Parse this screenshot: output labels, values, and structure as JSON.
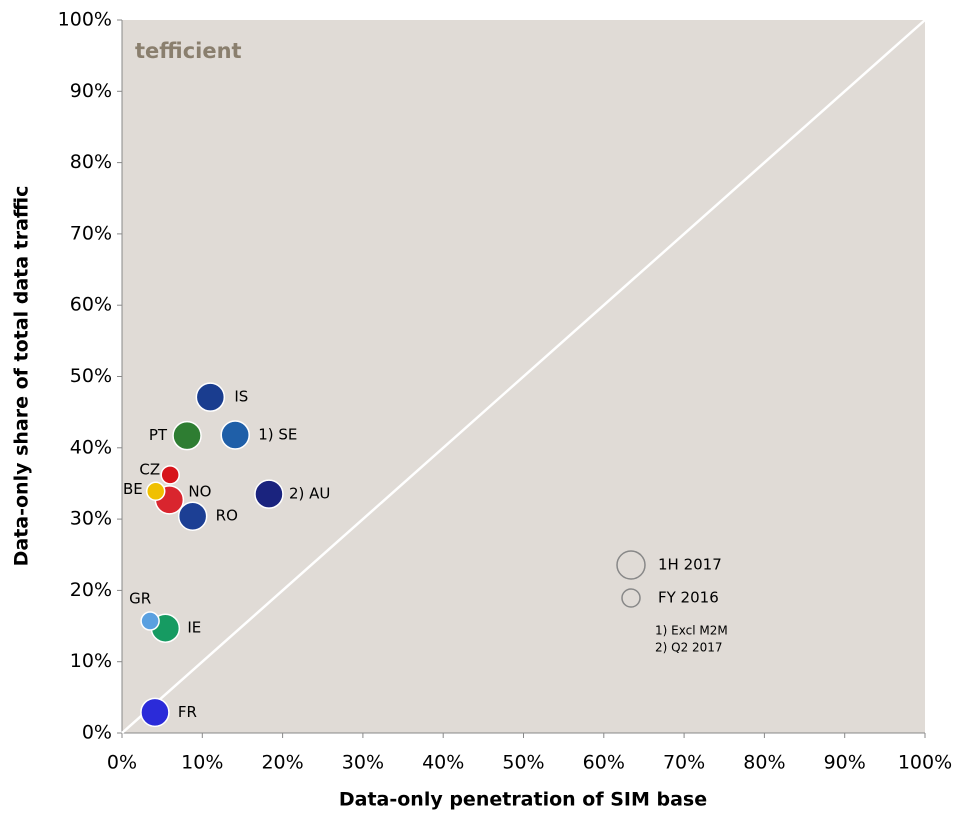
{
  "chart_data": {
    "type": "scatter",
    "x_label": "Data-only penetration of SIM base",
    "y_label": "Data-only share of total data traffic",
    "logo": "tefficient",
    "notes": [
      "1) Excl M2M",
      "2) Q2 2017"
    ],
    "diagonal": true,
    "xlim": [
      0,
      100
    ],
    "ylim": [
      0,
      100
    ],
    "xticks": [
      {
        "value": 0,
        "label": "0%"
      },
      {
        "value": 10,
        "label": "10%"
      },
      {
        "value": 20,
        "label": "20%"
      },
      {
        "value": 30,
        "label": "30%"
      },
      {
        "value": 40,
        "label": "40%"
      },
      {
        "value": 50,
        "label": "50%"
      },
      {
        "value": 60,
        "label": "60%"
      },
      {
        "value": 70,
        "label": "70%"
      },
      {
        "value": 80,
        "label": "80%"
      },
      {
        "value": 90,
        "label": "90%"
      },
      {
        "value": 100,
        "label": "100%"
      }
    ],
    "yticks": [
      {
        "value": 0,
        "label": "0%"
      },
      {
        "value": 10,
        "label": "10%"
      },
      {
        "value": 20,
        "label": "20%"
      },
      {
        "value": 30,
        "label": "30%"
      },
      {
        "value": 40,
        "label": "40%"
      },
      {
        "value": 50,
        "label": "50%"
      },
      {
        "value": 60,
        "label": "60%"
      },
      {
        "value": 70,
        "label": "70%"
      },
      {
        "value": 80,
        "label": "80%"
      },
      {
        "value": 90,
        "label": "90%"
      },
      {
        "value": 100,
        "label": "100%"
      }
    ],
    "series": [
      {
        "name": "1H 2017",
        "marker": "large",
        "labels": [
          "IS",
          "1) SE",
          "PT",
          "NO",
          "2) AU",
          "RO",
          "IE",
          "FR"
        ],
        "x": [
          11.0,
          14.1,
          8.1,
          5.9,
          18.3,
          8.8,
          5.4,
          4.1
        ],
        "values": [
          47.1,
          41.8,
          41.7,
          32.7,
          33.5,
          30.4,
          14.7,
          2.9
        ],
        "colors": [
          "#1a3d8f",
          "#1f5fa8",
          "#2e7d32",
          "#d9252e",
          "#1a237e",
          "#1c3f94",
          "#169b62",
          "#2b2bd9"
        ]
      },
      {
        "name": "FY 2016",
        "marker": "small",
        "labels": [
          "CZ",
          "BE",
          "GR"
        ],
        "x": [
          6.0,
          4.2,
          3.5
        ],
        "values": [
          36.2,
          33.9,
          15.7
        ],
        "colors": [
          "#d7141a",
          "#f0c000",
          "#5aa0e0"
        ]
      }
    ]
  }
}
